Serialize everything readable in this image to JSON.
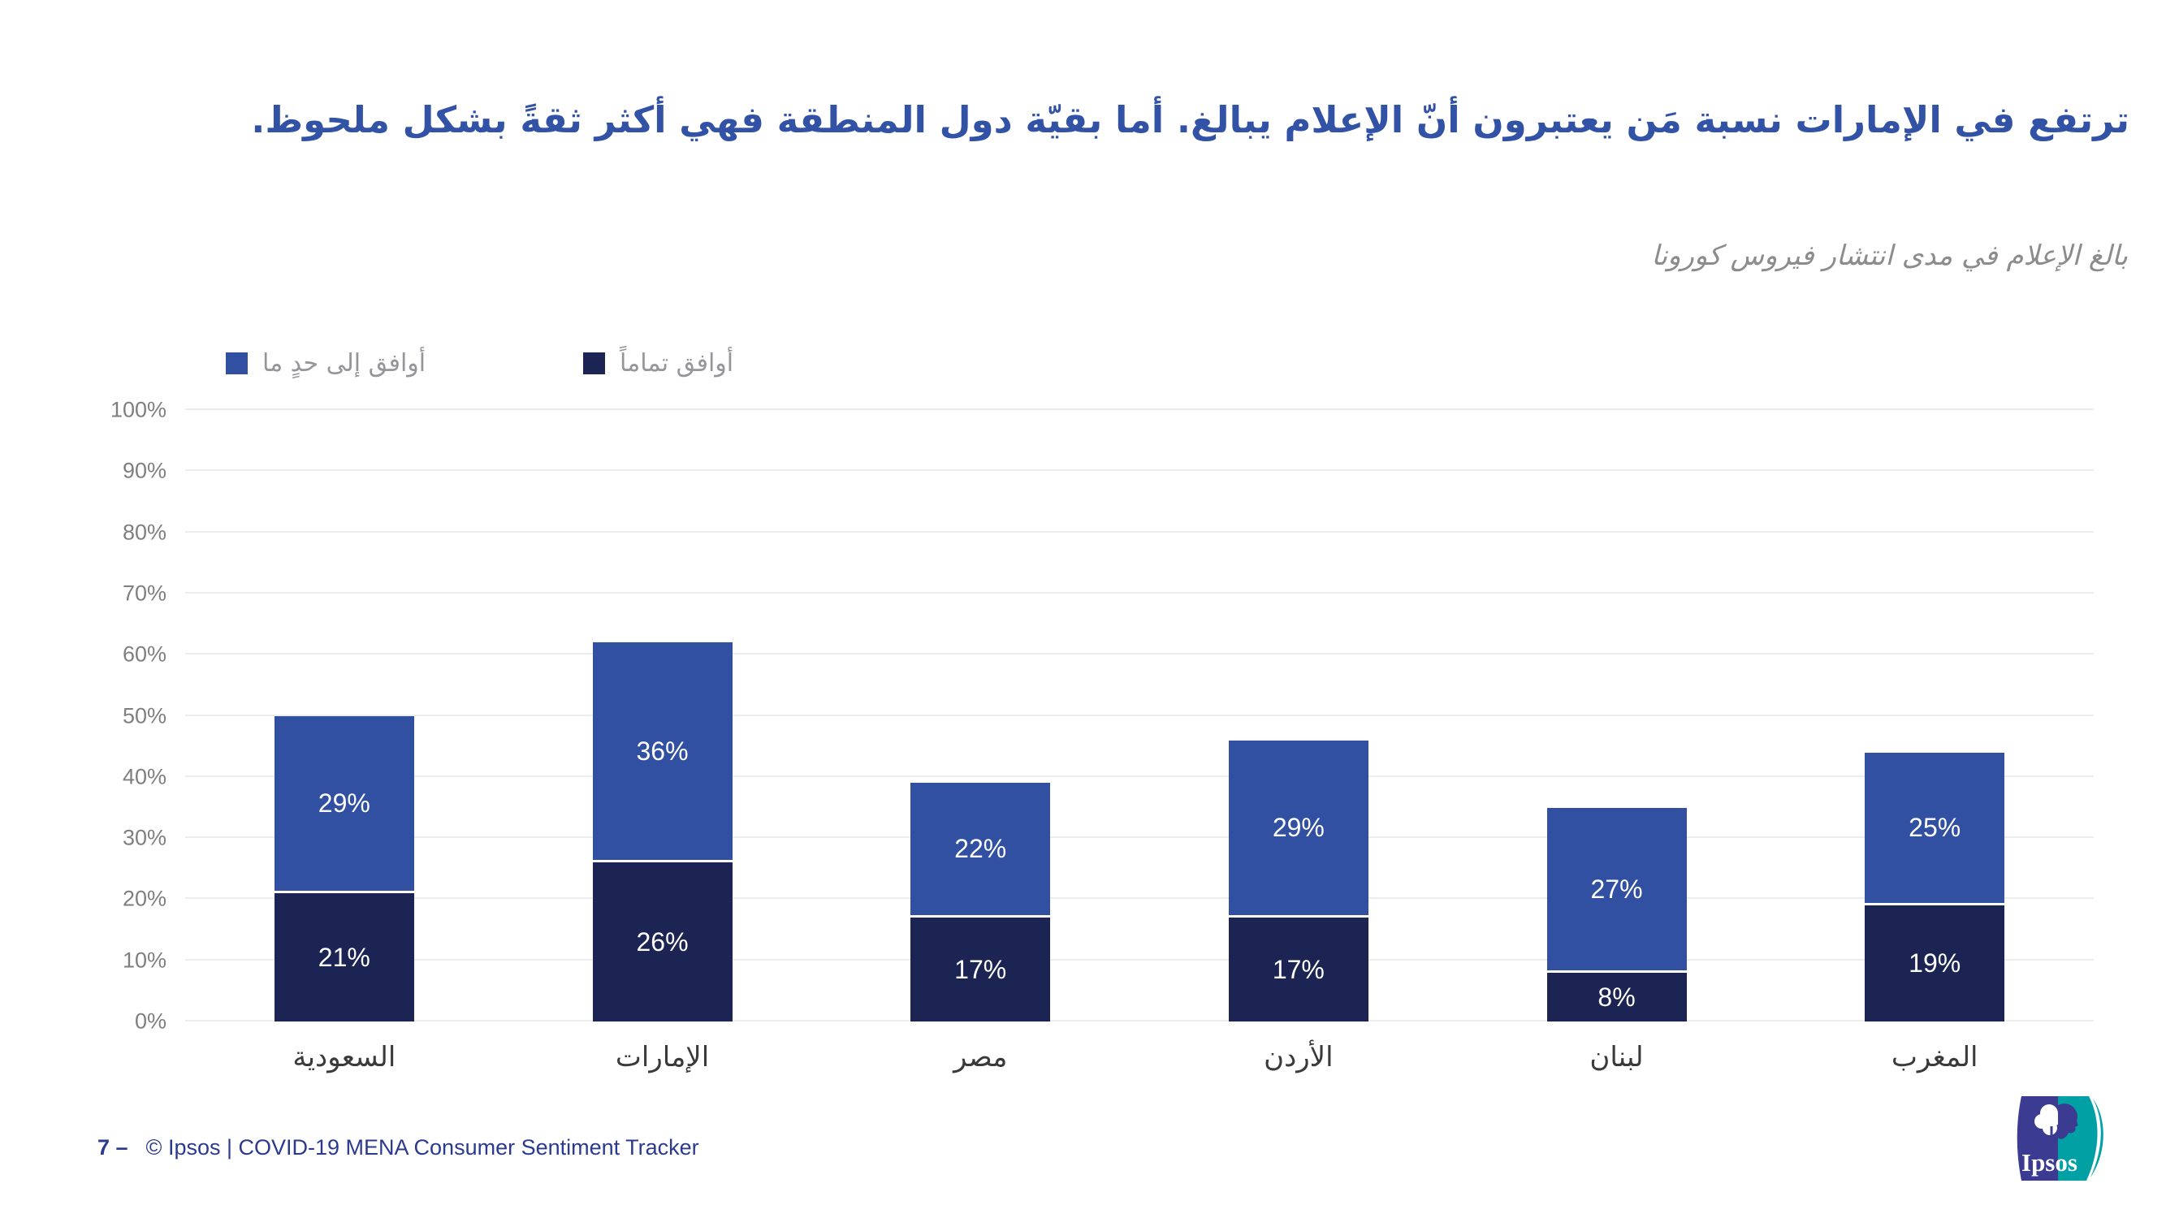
{
  "slide": {
    "title": "ترتفع في الإمارات نسبة مَن يعتبرون أنّ الإعلام يبالغ. أما بقيّة دول المنطقة فهي أكثر ثقةً بشكل ملحوظ.",
    "footer": {
      "page_label": "7 –",
      "text": "© Ipsos | COVID-19 MENA Consumer Sentiment Tracker"
    },
    "logo_text": "Ipsos"
  },
  "colors": {
    "strongly_agree": "#1b2453",
    "somewhat_agree": "#3150a2",
    "title": "#3252a6",
    "subtitle": "#8c8c8c",
    "legend_label": "#95959a",
    "tick_label": "#7f7f7f",
    "category_label": "#3a3a3a",
    "footer": "#2b3a8e",
    "gridline": "#ededed",
    "logo_indigo": "#3b3b92",
    "logo_teal": "#00a0a5"
  },
  "chart_data": {
    "type": "bar",
    "stacked": true,
    "title": "بالغ الإعلام في مدى انتشار فيروس كورونا",
    "categories": [
      "السعودية",
      "الإمارات",
      "مصر",
      "الأردن",
      "لبنان",
      "المغرب"
    ],
    "series": [
      {
        "name": "أوافق تماماً",
        "color_key": "strongly_agree",
        "values": [
          21,
          26,
          17,
          17,
          8,
          19
        ]
      },
      {
        "name": "أوافق إلى حدٍ ما",
        "color_key": "somewhat_agree",
        "values": [
          29,
          36,
          22,
          29,
          27,
          25
        ]
      }
    ],
    "totals": [
      50,
      62,
      39,
      46,
      35,
      44
    ],
    "ylim": [
      0,
      100
    ],
    "yticks": [
      "0%",
      "10%",
      "20%",
      "30%",
      "40%",
      "50%",
      "60%",
      "70%",
      "80%",
      "90%",
      "100%"
    ],
    "grid": "horizontal",
    "legend_position": "top-left",
    "value_label_format": "percent",
    "bar_label_color": "#ffffff"
  }
}
